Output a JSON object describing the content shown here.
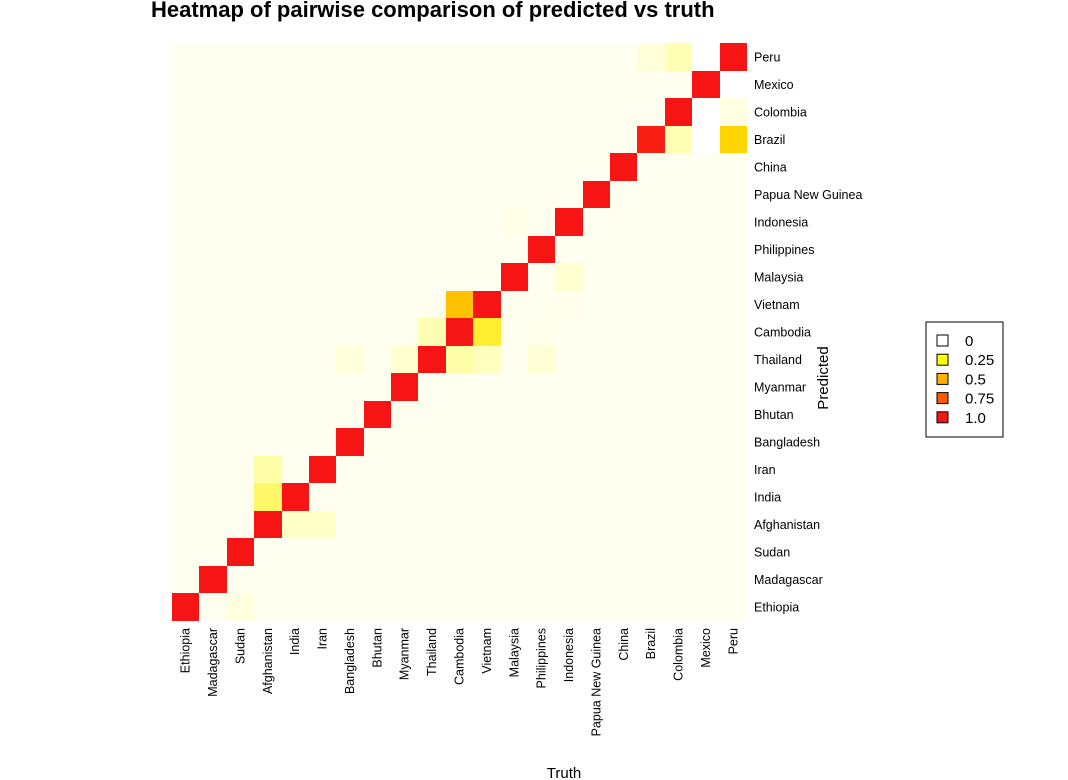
{
  "chart_data": {
    "type": "heatmap",
    "title": "Heatmap of pairwise comparison of predicted vs truth",
    "xlabel": "Truth",
    "ylabel": "Predicted",
    "x_categories": [
      "Ethiopia",
      "Madagascar",
      "Sudan",
      "Afghanistan",
      "India",
      "Iran",
      "Bangladesh",
      "Bhutan",
      "Myanmar",
      "Thailand",
      "Cambodia",
      "Vietnam",
      "Malaysia",
      "Philippines",
      "Indonesia",
      "Papua New Guinea",
      "China",
      "Brazil",
      "Colombia",
      "Mexico",
      "Peru"
    ],
    "y_categories": [
      "Ethiopia",
      "Madagascar",
      "Sudan",
      "Afghanistan",
      "India",
      "Iran",
      "Bangladesh",
      "Bhutan",
      "Myanmar",
      "Thailand",
      "Cambodia",
      "Vietnam",
      "Malaysia",
      "Philippines",
      "Indonesia",
      "Papua New Guinea",
      "China",
      "Brazil",
      "Colombia",
      "Mexico",
      "Peru"
    ],
    "value_range": [
      0,
      1
    ],
    "background_value": 0.01,
    "cells": [
      {
        "x": "Ethiopia",
        "y": "Ethiopia",
        "value": 1.0
      },
      {
        "x": "Sudan",
        "y": "Ethiopia",
        "value": 0.05
      },
      {
        "x": "Madagascar",
        "y": "Madagascar",
        "value": 1.0
      },
      {
        "x": "Sudan",
        "y": "Sudan",
        "value": 1.0
      },
      {
        "x": "Afghanistan",
        "y": "Afghanistan",
        "value": 1.0
      },
      {
        "x": "India",
        "y": "Afghanistan",
        "value": 0.1
      },
      {
        "x": "Iran",
        "y": "Afghanistan",
        "value": 0.1
      },
      {
        "x": "Afghanistan",
        "y": "India",
        "value": 0.25
      },
      {
        "x": "India",
        "y": "India",
        "value": 1.0
      },
      {
        "x": "Afghanistan",
        "y": "Iran",
        "value": 0.18
      },
      {
        "x": "Iran",
        "y": "Iran",
        "value": 1.0
      },
      {
        "x": "Bangladesh",
        "y": "Bangladesh",
        "value": 1.0
      },
      {
        "x": "Bhutan",
        "y": "Bhutan",
        "value": 1.0
      },
      {
        "x": "Myanmar",
        "y": "Myanmar",
        "value": 1.0
      },
      {
        "x": "Bangladesh",
        "y": "Thailand",
        "value": 0.06
      },
      {
        "x": "Myanmar",
        "y": "Thailand",
        "value": 0.08
      },
      {
        "x": "Thailand",
        "y": "Thailand",
        "value": 1.0
      },
      {
        "x": "Cambodia",
        "y": "Thailand",
        "value": 0.18
      },
      {
        "x": "Vietnam",
        "y": "Thailand",
        "value": 0.12
      },
      {
        "x": "Philippines",
        "y": "Thailand",
        "value": 0.07
      },
      {
        "x": "Thailand",
        "y": "Cambodia",
        "value": 0.15
      },
      {
        "x": "Cambodia",
        "y": "Cambodia",
        "value": 1.0
      },
      {
        "x": "Vietnam",
        "y": "Cambodia",
        "value": 0.3
      },
      {
        "x": "Philippines",
        "y": "Cambodia",
        "value": 0.02
      },
      {
        "x": "Cambodia",
        "y": "Vietnam",
        "value": 0.45
      },
      {
        "x": "Vietnam",
        "y": "Vietnam",
        "value": 1.0
      },
      {
        "x": "Indonesia",
        "y": "Vietnam",
        "value": 0.02
      },
      {
        "x": "Malaysia",
        "y": "Malaysia",
        "value": 1.0
      },
      {
        "x": "Indonesia",
        "y": "Malaysia",
        "value": 0.08
      },
      {
        "x": "Philippines",
        "y": "Philippines",
        "value": 1.0
      },
      {
        "x": "Malaysia",
        "y": "Indonesia",
        "value": 0.03
      },
      {
        "x": "Indonesia",
        "y": "Indonesia",
        "value": 1.0
      },
      {
        "x": "Papua New Guinea",
        "y": "Papua New Guinea",
        "value": 1.0
      },
      {
        "x": "China",
        "y": "China",
        "value": 1.0
      },
      {
        "x": "Brazil",
        "y": "Brazil",
        "value": 0.95
      },
      {
        "x": "Colombia",
        "y": "Brazil",
        "value": 0.15
      },
      {
        "x": "Mexico",
        "y": "Brazil",
        "value": 0.0
      },
      {
        "x": "Peru",
        "y": "Brazil",
        "value": 0.4
      },
      {
        "x": "Colombia",
        "y": "Colombia",
        "value": 1.0
      },
      {
        "x": "Mexico",
        "y": "Colombia",
        "value": 0.0
      },
      {
        "x": "Peru",
        "y": "Colombia",
        "value": 0.04
      },
      {
        "x": "Mexico",
        "y": "Mexico",
        "value": 1.0
      },
      {
        "x": "Peru",
        "y": "Mexico",
        "value": 0.0
      },
      {
        "x": "Brazil",
        "y": "Peru",
        "value": 0.06
      },
      {
        "x": "Colombia",
        "y": "Peru",
        "value": 0.15
      },
      {
        "x": "Mexico",
        "y": "Peru",
        "value": 0.0
      },
      {
        "x": "Peru",
        "y": "Peru",
        "value": 1.0
      }
    ],
    "color_scale": [
      {
        "value": 0.0,
        "color": "#ffffff"
      },
      {
        "value": 0.01,
        "color": "#fffff0"
      },
      {
        "value": 0.08,
        "color": "#ffffd0"
      },
      {
        "value": 0.2,
        "color": "#ffffa0"
      },
      {
        "value": 0.3,
        "color": "#ffee30"
      },
      {
        "value": 0.4,
        "color": "#ffd400"
      },
      {
        "value": 0.5,
        "color": "#ffb000"
      },
      {
        "value": 0.75,
        "color": "#ff5010"
      },
      {
        "value": 1.0,
        "color": "#f71414"
      }
    ],
    "legend": {
      "placement": "right",
      "entries": [
        {
          "label": "0",
          "color": "#ffffff"
        },
        {
          "label": "0.25",
          "color": "#ffff00"
        },
        {
          "label": "0.5",
          "color": "#ffb000"
        },
        {
          "label": "0.75",
          "color": "#ff5a00"
        },
        {
          "label": "1.0",
          "color": "#f71414"
        }
      ]
    },
    "grid": false
  }
}
